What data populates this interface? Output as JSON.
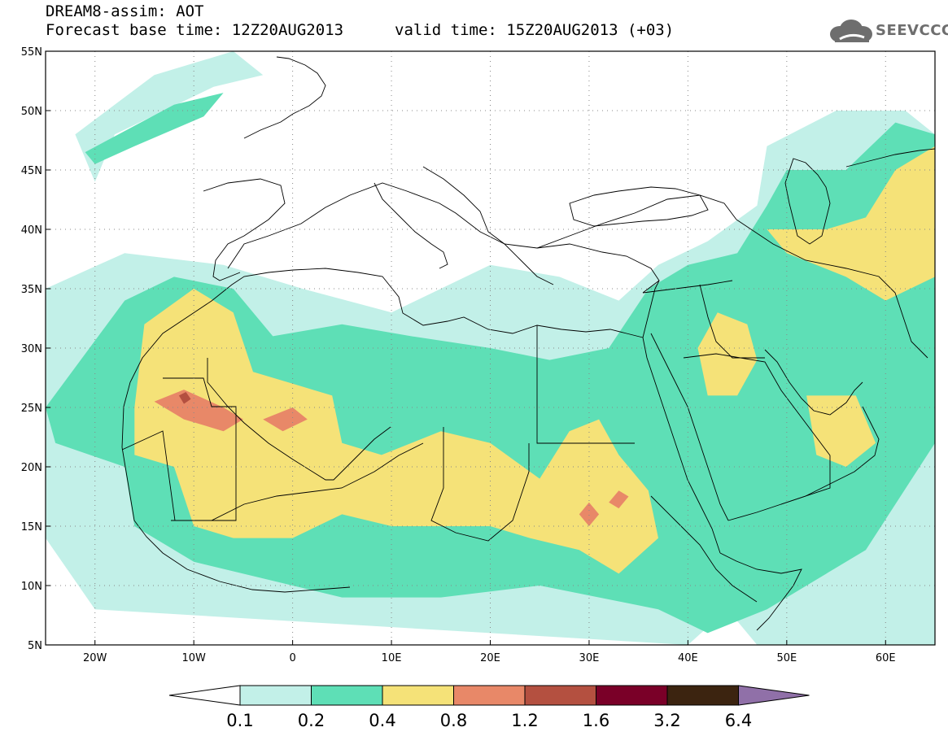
{
  "header": {
    "title": "DREAM8-assim: AOT",
    "base_time": "Forecast base time: 12Z20AUG2013",
    "valid_time": "valid time: 15Z20AUG2013 (+03)"
  },
  "logo": {
    "text": "SEEVCCC",
    "icon": "cloud-logo-icon"
  },
  "map": {
    "lon_range": [
      -25,
      65
    ],
    "lat_range": [
      5,
      55
    ],
    "lat_ticks": [
      {
        "value": 55,
        "label": "55N"
      },
      {
        "value": 50,
        "label": "50N"
      },
      {
        "value": 45,
        "label": "45N"
      },
      {
        "value": 40,
        "label": "40N"
      },
      {
        "value": 35,
        "label": "35N"
      },
      {
        "value": 30,
        "label": "30N"
      },
      {
        "value": 25,
        "label": "25N"
      },
      {
        "value": 20,
        "label": "20N"
      },
      {
        "value": 15,
        "label": "15N"
      },
      {
        "value": 10,
        "label": "10N"
      },
      {
        "value": 5,
        "label": "5N"
      }
    ],
    "lon_ticks": [
      {
        "value": -20,
        "label": "20W"
      },
      {
        "value": -10,
        "label": "10W"
      },
      {
        "value": 0,
        "label": "0"
      },
      {
        "value": 10,
        "label": "10E"
      },
      {
        "value": 20,
        "label": "20E"
      },
      {
        "value": 30,
        "label": "30E"
      },
      {
        "value": 40,
        "label": "40E"
      },
      {
        "value": 50,
        "label": "50E"
      },
      {
        "value": 60,
        "label": "60E"
      }
    ],
    "grid": "dotted",
    "field_levels": [
      {
        "level": "0.1-0.2",
        "points": [
          [
            -18,
            48
          ],
          [
            -8,
            52
          ],
          [
            -3,
            53
          ],
          [
            -6,
            55
          ],
          [
            -14,
            53
          ],
          [
            -22,
            48
          ],
          [
            -20,
            44
          ]
        ]
      },
      {
        "level": "0.2-0.4",
        "points": [
          [
            -21,
            46.5
          ],
          [
            -12,
            50.5
          ],
          [
            -7,
            51.5
          ],
          [
            -9,
            49.5
          ],
          [
            -16,
            47
          ],
          [
            -20,
            45.5
          ]
        ]
      },
      {
        "level": "0.1-0.2",
        "points": [
          [
            -25,
            35
          ],
          [
            -17,
            38
          ],
          [
            -7,
            37
          ],
          [
            1,
            35
          ],
          [
            10,
            33
          ],
          [
            20,
            37
          ],
          [
            27,
            36
          ],
          [
            33,
            34
          ],
          [
            37,
            37
          ],
          [
            42,
            39
          ],
          [
            47,
            42
          ],
          [
            48,
            47
          ],
          [
            55,
            50
          ],
          [
            62,
            50
          ],
          [
            65,
            48
          ],
          [
            65,
            5
          ],
          [
            47,
            5
          ],
          [
            44,
            8
          ],
          [
            40,
            5
          ],
          [
            -20,
            8
          ],
          [
            -25,
            14
          ]
        ]
      },
      {
        "level": "0.2-0.4",
        "points": [
          [
            -25,
            25
          ],
          [
            -17,
            34
          ],
          [
            -12,
            36
          ],
          [
            -6,
            35
          ],
          [
            -2,
            31
          ],
          [
            5,
            32
          ],
          [
            12,
            31
          ],
          [
            20,
            30
          ],
          [
            26,
            29
          ],
          [
            32,
            30
          ],
          [
            36,
            35
          ],
          [
            40,
            37
          ],
          [
            45,
            38
          ],
          [
            48,
            42
          ],
          [
            50,
            45
          ],
          [
            56,
            45
          ],
          [
            61,
            49
          ],
          [
            65,
            48
          ],
          [
            65,
            22
          ],
          [
            58,
            13
          ],
          [
            48,
            8
          ],
          [
            42,
            6
          ],
          [
            37,
            8
          ],
          [
            25,
            10
          ],
          [
            15,
            9
          ],
          [
            5,
            9
          ],
          [
            -10,
            12
          ],
          [
            -16,
            15
          ],
          [
            -17,
            20
          ],
          [
            -24,
            22
          ]
        ]
      },
      {
        "level": "0.4-0.8",
        "points": [
          [
            -16,
            25
          ],
          [
            -15,
            32
          ],
          [
            -10,
            35
          ],
          [
            -6,
            33
          ],
          [
            -4,
            28
          ],
          [
            0,
            27
          ],
          [
            4,
            26
          ],
          [
            5,
            22
          ],
          [
            9,
            21
          ],
          [
            15,
            23
          ],
          [
            20,
            22
          ],
          [
            25,
            19
          ],
          [
            28,
            23
          ],
          [
            31,
            24
          ],
          [
            33,
            21
          ],
          [
            36,
            18
          ],
          [
            37,
            14
          ],
          [
            33,
            11
          ],
          [
            29,
            13
          ],
          [
            24,
            14
          ],
          [
            20,
            15
          ],
          [
            14,
            15
          ],
          [
            10,
            15
          ],
          [
            5,
            16
          ],
          [
            0,
            14
          ],
          [
            -6,
            14
          ],
          [
            -10,
            15
          ],
          [
            -12,
            20
          ],
          [
            -16,
            21
          ]
        ]
      },
      {
        "level": "0.4-0.8",
        "points": [
          [
            43,
            33
          ],
          [
            46,
            32
          ],
          [
            47,
            29
          ],
          [
            45,
            26
          ],
          [
            42,
            26
          ],
          [
            41,
            30
          ]
        ]
      },
      {
        "level": "0.4-0.8",
        "points": [
          [
            48,
            40
          ],
          [
            54,
            40
          ],
          [
            58,
            41
          ],
          [
            61,
            45
          ],
          [
            65,
            47
          ],
          [
            65,
            36
          ],
          [
            60,
            34
          ],
          [
            56,
            36
          ],
          [
            50,
            38
          ]
        ]
      },
      {
        "level": "0.4-0.8",
        "points": [
          [
            52,
            26
          ],
          [
            57,
            26
          ],
          [
            59,
            22
          ],
          [
            56,
            20
          ],
          [
            53,
            21
          ]
        ]
      },
      {
        "level": "0.8-1.2",
        "points": [
          [
            -14,
            25.5
          ],
          [
            -11,
            26.5
          ],
          [
            -7,
            25
          ],
          [
            -5,
            24
          ],
          [
            -7,
            23
          ],
          [
            -11,
            24
          ]
        ]
      },
      {
        "level": "0.8-1.2",
        "points": [
          [
            -3,
            24
          ],
          [
            0,
            25
          ],
          [
            1.5,
            24
          ],
          [
            -1,
            23
          ]
        ]
      },
      {
        "level": "0.8-1.2",
        "points": [
          [
            29,
            16
          ],
          [
            30,
            17
          ],
          [
            31,
            16
          ],
          [
            30,
            15
          ]
        ]
      },
      {
        "level": "0.8-1.2",
        "points": [
          [
            32,
            17
          ],
          [
            33,
            18
          ],
          [
            34,
            17.5
          ],
          [
            33,
            16.5
          ]
        ]
      },
      {
        "level": "1.2-1.6",
        "points": [
          [
            -11.5,
            26
          ],
          [
            -10.8,
            26.3
          ],
          [
            -10.3,
            25.7
          ],
          [
            -11,
            25.3
          ]
        ]
      }
    ]
  },
  "colorbar": {
    "colors": [
      "#ffffff",
      "#c2f0e8",
      "#5edfb6",
      "#f5e278",
      "#e88868",
      "#b45040",
      "#7a0028",
      "#3c2410",
      "#9070a8"
    ],
    "labels": [
      "0.1",
      "0.2",
      "0.4",
      "0.8",
      "1.2",
      "1.6",
      "3.2",
      "6.4"
    ]
  },
  "colors": {
    "0.1-0.2": "#c2f0e8",
    "0.2-0.4": "#5edfb6",
    "0.4-0.8": "#f5e278",
    "0.8-1.2": "#e88868",
    "1.2-1.6": "#b45040",
    "border": "#000000"
  }
}
